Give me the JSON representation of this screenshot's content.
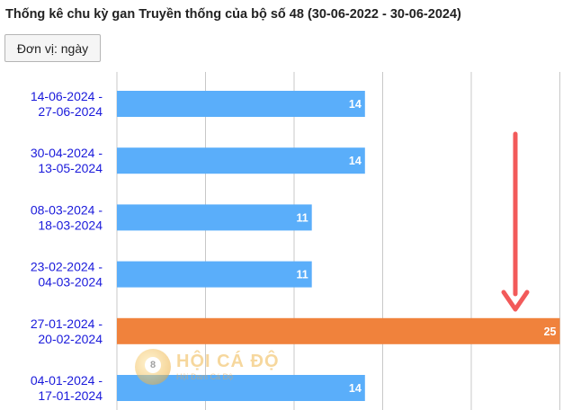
{
  "title": "Thống kê chu kỳ gan Truyền thống của bộ số 48 (30-06-2022 - 30-06-2024)",
  "unit_button": "Đơn vị: ngày",
  "logo": {
    "main": "HỘI CÁ ĐỘ",
    "sub": "Hội Đam Cá Độ"
  },
  "colors": {
    "bar": "#5aaefa",
    "highlight": "#f0823c",
    "arrow": "#f25a5a",
    "label": "#1a1adb",
    "grid": "#c8c8c8"
  },
  "chart_data": {
    "type": "bar",
    "orientation": "horizontal",
    "title": "Thống kê chu kỳ gan Truyền thống của bộ số 48 (30-06-2022 - 30-06-2024)",
    "xlabel": "",
    "ylabel": "",
    "categories": [
      [
        "14-06-2024 -",
        "27-06-2024"
      ],
      [
        "30-04-2024 -",
        "13-05-2024"
      ],
      [
        "08-03-2024 -",
        "18-03-2024"
      ],
      [
        "23-02-2024 -",
        "04-03-2024"
      ],
      [
        "27-01-2024 -",
        "20-02-2024"
      ],
      [
        "04-01-2024 -",
        "17-01-2024"
      ]
    ],
    "values": [
      14,
      14,
      11,
      11,
      25,
      14
    ],
    "highlight_index": 4,
    "xlim": [
      0,
      25
    ],
    "grid": true,
    "legend": "none"
  }
}
